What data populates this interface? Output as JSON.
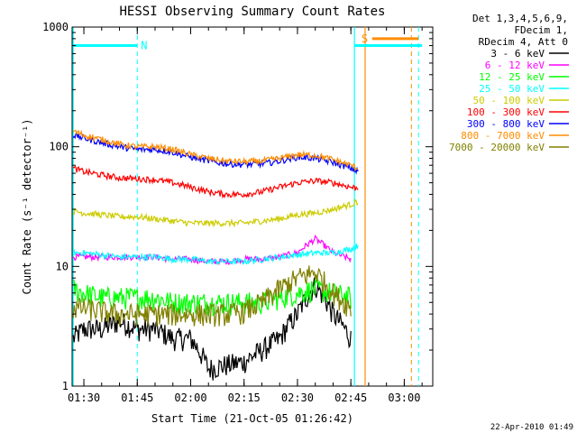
{
  "chart_data": {
    "type": "line",
    "title": "HESSI Observing Summary Count Rates",
    "xlabel": "Start Time (21-Oct-05 01:26:42)",
    "ylabel": "Count Rate (s⁻¹ detector⁻¹)",
    "y_scale": "log",
    "ylim": [
      1,
      1000
    ],
    "xlim": [
      "01:26:42",
      "03:08:00"
    ],
    "x_tick_labels": [
      "01:30",
      "01:45",
      "02:00",
      "02:15",
      "02:30",
      "02:45",
      "03:00"
    ],
    "y_tick_labels": [
      "1",
      "10",
      "100",
      "1000"
    ],
    "grid": false,
    "legend_position": "right",
    "legend_header": [
      "Det 1,3,4,5,6,9,",
      "FDecim 1,",
      "RDecim 4, Att 0"
    ],
    "footer": "22-Apr-2010 01:49",
    "series": [
      {
        "name": "3 - 6 keV",
        "color": "#000000",
        "x": [
          "01:27",
          "01:30",
          "01:35",
          "01:40",
          "01:45",
          "01:50",
          "01:55",
          "02:00",
          "02:05",
          "02:10",
          "02:15",
          "02:20",
          "02:25",
          "02:30",
          "02:35",
          "02:40",
          "02:45"
        ],
        "y": [
          2.5,
          3,
          3,
          3.5,
          3,
          3,
          2.5,
          2.5,
          1.4,
          1.5,
          1.6,
          2,
          2.5,
          4,
          7,
          4,
          2.5
        ]
      },
      {
        "name": "6 - 12 keV",
        "color": "#ff00ff",
        "x": [
          "01:27",
          "01:30",
          "01:35",
          "01:40",
          "01:45",
          "01:50",
          "01:55",
          "02:00",
          "02:05",
          "02:10",
          "02:15",
          "02:20",
          "02:25",
          "02:30",
          "02:35",
          "02:40",
          "02:45"
        ],
        "y": [
          12,
          12,
          12,
          12,
          12,
          12,
          11.5,
          11.5,
          11,
          11,
          11.5,
          11.5,
          12,
          13,
          17,
          13,
          11.5
        ]
      },
      {
        "name": "12 - 25 keV",
        "color": "#00ff00",
        "x": [
          "01:27",
          "01:30",
          "01:35",
          "01:40",
          "01:45",
          "01:50",
          "01:55",
          "02:00",
          "02:05",
          "02:10",
          "02:15",
          "02:20",
          "02:25",
          "02:30",
          "02:35",
          "02:40",
          "02:45"
        ],
        "y": [
          6.5,
          6,
          5.5,
          5.5,
          5.5,
          5.5,
          5,
          5,
          5,
          5,
          5,
          5,
          5.5,
          6,
          6.5,
          6,
          5.5
        ]
      },
      {
        "name": "25 - 50 keV",
        "color": "#00ffff",
        "x": [
          "01:27",
          "01:30",
          "01:35",
          "01:40",
          "01:45",
          "01:50",
          "01:55",
          "02:00",
          "02:05",
          "02:10",
          "02:15",
          "02:20",
          "02:25",
          "02:30",
          "02:35",
          "02:40",
          "02:45",
          "02:47"
        ],
        "y": [
          13,
          13,
          12.5,
          12,
          12,
          12,
          11.5,
          11.5,
          11,
          11,
          11,
          11.5,
          12,
          12.5,
          13,
          13,
          14,
          15
        ]
      },
      {
        "name": "50 - 100 keV",
        "color": "#cccc00",
        "x": [
          "01:27",
          "01:30",
          "01:35",
          "01:40",
          "01:45",
          "01:50",
          "01:55",
          "02:00",
          "02:05",
          "02:10",
          "02:15",
          "02:20",
          "02:25",
          "02:30",
          "02:35",
          "02:40",
          "02:45",
          "02:47"
        ],
        "y": [
          29,
          28,
          27,
          26,
          26,
          25,
          24,
          23,
          23,
          23,
          23,
          24,
          25,
          27,
          28,
          30,
          33,
          35
        ]
      },
      {
        "name": "100 - 300 keV",
        "color": "#ff0000",
        "x": [
          "01:27",
          "01:30",
          "01:35",
          "01:40",
          "01:45",
          "01:50",
          "01:55",
          "02:00",
          "02:05",
          "02:10",
          "02:15",
          "02:20",
          "02:25",
          "02:30",
          "02:35",
          "02:40",
          "02:45",
          "02:47"
        ],
        "y": [
          66,
          62,
          58,
          55,
          54,
          53,
          50,
          46,
          42,
          40,
          40,
          42,
          46,
          50,
          52,
          50,
          46,
          45
        ]
      },
      {
        "name": "300 - 800 keV",
        "color": "#0000ff",
        "x": [
          "01:27",
          "01:30",
          "01:35",
          "01:40",
          "01:45",
          "01:50",
          "01:55",
          "02:00",
          "02:05",
          "02:10",
          "02:15",
          "02:20",
          "02:25",
          "02:30",
          "02:35",
          "02:40",
          "02:45",
          "02:47"
        ],
        "y": [
          125,
          118,
          108,
          100,
          95,
          95,
          90,
          82,
          76,
          72,
          71,
          72,
          76,
          82,
          80,
          74,
          66,
          62
        ]
      },
      {
        "name": "800 - 7000 keV",
        "color": "#ff8c00",
        "x": [
          "01:27",
          "01:30",
          "01:35",
          "01:40",
          "01:45",
          "01:50",
          "01:55",
          "02:00",
          "02:05",
          "02:10",
          "02:15",
          "02:20",
          "02:25",
          "02:30",
          "02:35",
          "02:40",
          "02:45",
          "02:47"
        ],
        "y": [
          135,
          125,
          115,
          105,
          100,
          100,
          95,
          86,
          80,
          76,
          75,
          76,
          80,
          86,
          85,
          78,
          70,
          66
        ]
      },
      {
        "name": "7000 - 20000 keV",
        "color": "#808000",
        "x": [
          "01:27",
          "01:30",
          "01:35",
          "01:40",
          "01:45",
          "01:50",
          "01:55",
          "02:00",
          "02:05",
          "02:10",
          "02:15",
          "02:20",
          "02:25",
          "02:30",
          "02:35",
          "02:40",
          "02:45"
        ],
        "y": [
          4.5,
          4.5,
          4.2,
          4,
          4,
          4,
          4,
          4,
          4,
          4,
          4.2,
          5,
          6.5,
          8,
          9,
          6,
          4.5
        ]
      }
    ],
    "markers": {
      "saa_interval": {
        "label": "S",
        "color": "#ff8c00",
        "start": "02:51",
        "end": "03:04",
        "level": 800
      },
      "night_interval_1": {
        "label": "N",
        "color": "#00ffff",
        "start": "01:27",
        "end": "01:45",
        "level": 700
      },
      "night_interval_2": {
        "color": "#00ffff",
        "start": "02:46",
        "end": "03:05",
        "level": 700
      },
      "dashed_lines": [
        {
          "x": "01:45",
          "color": "#00ffff"
        },
        {
          "x": "03:02",
          "color": "#ff8c00"
        },
        {
          "x": "03:04",
          "color": "#00ffff"
        }
      ],
      "solid_lines": [
        {
          "x": "01:27",
          "color": "#00ffff"
        },
        {
          "x": "02:46",
          "color": "#00ffff"
        },
        {
          "x": "02:49",
          "color": "#ff8c00"
        }
      ]
    }
  }
}
